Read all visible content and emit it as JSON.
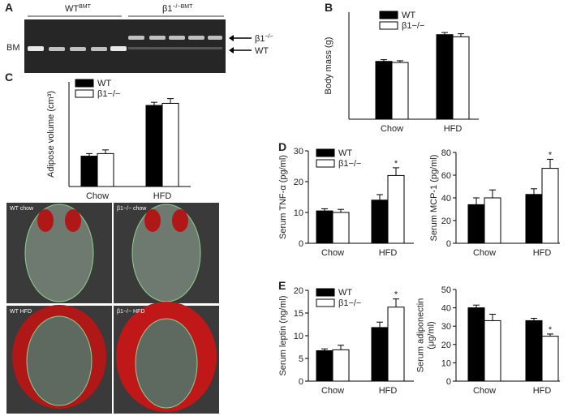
{
  "panels": [
    "A",
    "B",
    "C",
    "D",
    "E"
  ],
  "gel": {
    "groups": [
      {
        "label": "WT",
        "sup": "BMT"
      },
      {
        "label": "β1",
        "sup": "−/−BMT"
      }
    ],
    "row_label": "BM",
    "bands": [
      {
        "label": "β1",
        "sup": "−/−"
      },
      {
        "label": "WT"
      }
    ]
  },
  "ct_images": [
    "WT chow",
    "β1−/− chow",
    "WT HFD",
    "β1−/− HFD"
  ],
  "chart_data": [
    {
      "type": "bar",
      "ylabel": [
        "Body mass (g)"
      ],
      "categories": [
        "Chow",
        "HFD"
      ],
      "ylim": [
        0,
        50
      ],
      "legend": true,
      "series": [
        {
          "name": "WT",
          "color": "#000000",
          "values": [
            27,
            39.5
          ],
          "errors": [
            0.8,
            1
          ]
        },
        {
          "name": "β1−/−",
          "color": "#ffffff",
          "values": [
            26.5,
            38.5
          ],
          "errors": [
            0.8,
            1.4
          ]
        }
      ]
    },
    {
      "type": "bar",
      "ylabel": [
        "Adipose volume (cm³)"
      ],
      "categories": [
        "Chow",
        "HFD"
      ],
      "ylim": [
        0,
        20
      ],
      "legend": true,
      "series": [
        {
          "name": "WT",
          "color": "#000000",
          "values": [
            5.8,
            15.5
          ],
          "errors": [
            0.5,
            0.6
          ]
        },
        {
          "name": "β1−/−",
          "color": "#ffffff",
          "values": [
            6.3,
            15.9
          ],
          "errors": [
            0.7,
            0.9
          ]
        }
      ]
    },
    {
      "type": "bar",
      "ylabel": [
        "Serum TNF-α (pg/ml)"
      ],
      "categories": [
        "Chow",
        "HFD"
      ],
      "ylim": [
        0,
        30
      ],
      "yticks": [
        0,
        10,
        20,
        30
      ],
      "legend": true,
      "series": [
        {
          "name": "WT",
          "color": "#000000",
          "values": [
            10.5,
            14
          ],
          "errors": [
            0.7,
            1.8
          ]
        },
        {
          "name": "β1−/−",
          "color": "#ffffff",
          "values": [
            10,
            22
          ],
          "errors": [
            1,
            2.5
          ],
          "stars": [
            null,
            "*"
          ]
        }
      ]
    },
    {
      "type": "bar",
      "ylabel": [
        "Serum MCP-1 (pg/ml)"
      ],
      "categories": [
        "Chow",
        "HFD"
      ],
      "ylim": [
        0,
        80
      ],
      "yticks": [
        0,
        20,
        40,
        60,
        80
      ],
      "legend": false,
      "series": [
        {
          "color": "#000000",
          "values": [
            34,
            43
          ],
          "errors": [
            6,
            5
          ]
        },
        {
          "color": "#ffffff",
          "values": [
            40,
            66
          ],
          "errors": [
            7,
            8
          ],
          "stars": [
            null,
            "*"
          ]
        }
      ]
    },
    {
      "type": "bar",
      "ylabel": [
        "Serum leptin (ng/ml)"
      ],
      "categories": [
        "Chow",
        "HFD"
      ],
      "ylim": [
        0,
        20
      ],
      "yticks": [
        0,
        5,
        10,
        15,
        20
      ],
      "legend": true,
      "series": [
        {
          "name": "WT",
          "color": "#000000",
          "values": [
            6.7,
            11.8
          ],
          "errors": [
            0.4,
            1.2
          ]
        },
        {
          "name": "β1−/−",
          "color": "#ffffff",
          "values": [
            6.9,
            16.3
          ],
          "errors": [
            1,
            1.8
          ],
          "stars": [
            null,
            "*"
          ]
        }
      ]
    },
    {
      "type": "bar",
      "ylabel": [
        "Serum adiponectin",
        "(μg/ml)"
      ],
      "categories": [
        "Chow",
        "HFD"
      ],
      "ylim": [
        0,
        50
      ],
      "yticks": [
        0,
        10,
        20,
        30,
        40,
        50
      ],
      "legend": false,
      "series": [
        {
          "color": "#000000",
          "values": [
            40,
            33
          ],
          "errors": [
            1.5,
            1.3
          ]
        },
        {
          "color": "#ffffff",
          "values": [
            33,
            24.5
          ],
          "errors": [
            3.5,
            1.2
          ],
          "stars": [
            null,
            "*"
          ]
        }
      ]
    }
  ]
}
